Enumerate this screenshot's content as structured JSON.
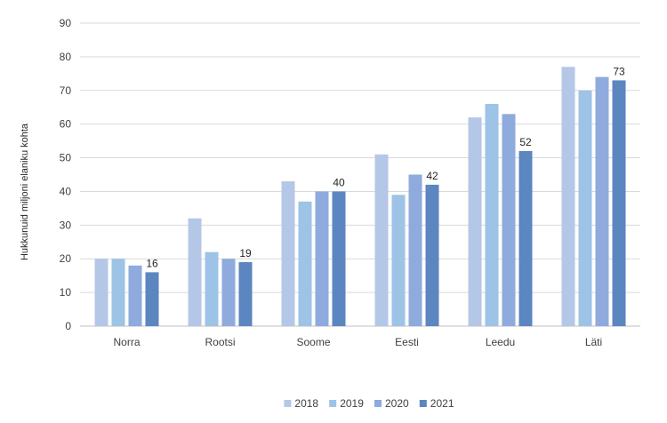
{
  "chart_data": {
    "type": "bar",
    "title": "",
    "xlabel": "",
    "ylabel": "Hukkunuid miljoni elaniku kohta",
    "ylim": [
      0,
      90
    ],
    "yticks": [
      0,
      10,
      20,
      30,
      40,
      50,
      60,
      70,
      80,
      90
    ],
    "grid": true,
    "legend_position": "bottom",
    "categories": [
      "Norra",
      "Rootsi",
      "Soome",
      "Eesti",
      "Leedu",
      "Läti"
    ],
    "series": [
      {
        "name": "2018",
        "color": "#b4c7e7",
        "values": [
          20,
          32,
          43,
          51,
          62,
          77
        ]
      },
      {
        "name": "2019",
        "color": "#9dc3e6",
        "values": [
          20,
          22,
          37,
          39,
          66,
          70
        ]
      },
      {
        "name": "2020",
        "color": "#8faadc",
        "values": [
          18,
          20,
          40,
          45,
          63,
          74
        ]
      },
      {
        "name": "2021",
        "color": "#5b86c0",
        "values": [
          16,
          19,
          40,
          42,
          52,
          73
        ]
      }
    ],
    "data_labels": {
      "series": "2021",
      "values": [
        16,
        19,
        40,
        42,
        52,
        73
      ]
    }
  }
}
